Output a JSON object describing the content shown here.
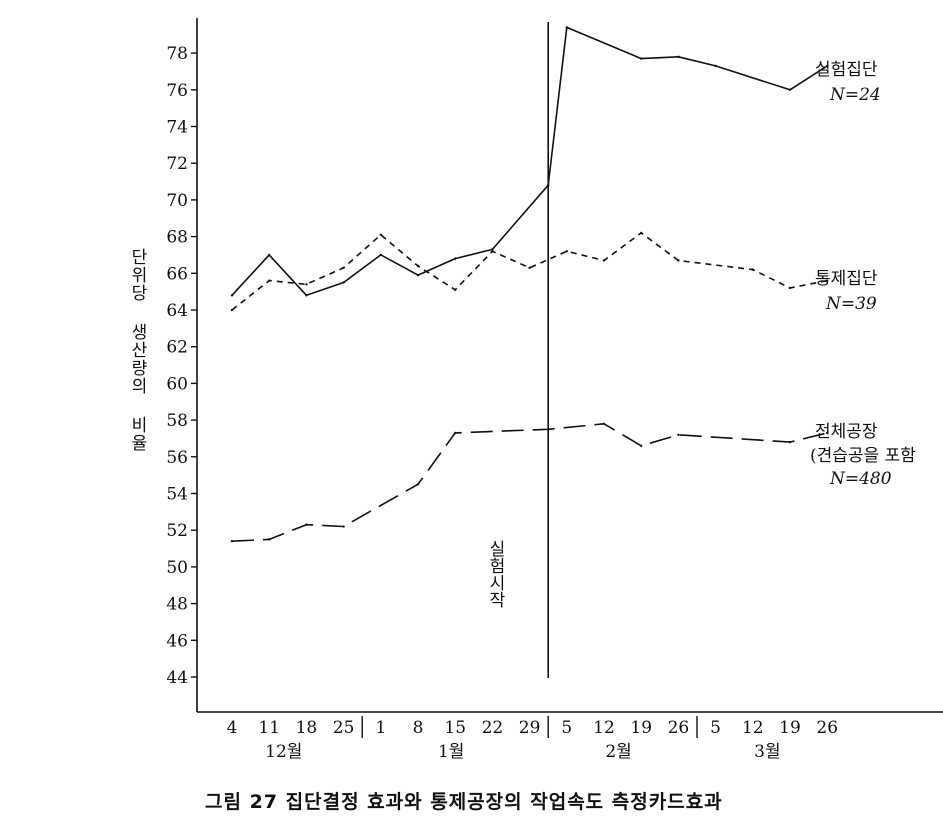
{
  "caption": "그림 27  집단결정 효과와 통제공장의 작업속도 측정카드효과",
  "chart_data": {
    "type": "line",
    "ylabel": "단위당 생산량의 비율",
    "ylim": [
      44,
      80
    ],
    "yticks": [
      44,
      46,
      48,
      50,
      52,
      54,
      56,
      58,
      60,
      62,
      64,
      66,
      68,
      70,
      72,
      74,
      76,
      78
    ],
    "categories": [
      "4",
      "11",
      "18",
      "25",
      "1",
      "8",
      "15",
      "22",
      "29",
      "5",
      "12",
      "19",
      "26",
      "5",
      "12",
      "19",
      "26"
    ],
    "months": [
      {
        "label": "12월",
        "start": 0,
        "end": 3
      },
      {
        "label": "1월",
        "start": 4,
        "end": 8
      },
      {
        "label": "2월",
        "start": 9,
        "end": 12
      },
      {
        "label": "3월",
        "start": 13,
        "end": 16
      }
    ],
    "marker": {
      "label": "실험시작",
      "position": 8.5
    },
    "series": [
      {
        "name": "실험집단",
        "n_label": "N=24",
        "style": "solid",
        "x": [
          0,
          1,
          2,
          3,
          4,
          5,
          6,
          7,
          8.5,
          9,
          11,
          12,
          13,
          15,
          16
        ],
        "values": [
          64.8,
          67.0,
          64.8,
          65.5,
          67.0,
          65.9,
          66.8,
          67.3,
          70.8,
          79.4,
          77.7,
          77.8,
          77.3,
          76.0,
          77.3
        ]
      },
      {
        "name": "통제집단",
        "n_label": "N=39",
        "style": "dashed",
        "x": [
          0,
          1,
          2,
          3,
          4,
          5,
          6,
          7,
          8,
          9,
          10,
          11,
          12,
          14,
          15,
          16
        ],
        "values": [
          64.0,
          65.6,
          65.4,
          66.3,
          68.1,
          66.4,
          65.1,
          67.2,
          66.3,
          67.2,
          66.7,
          68.2,
          66.7,
          66.2,
          65.2,
          65.6
        ]
      },
      {
        "name": "전체공장",
        "sub_label": "(견습공을 포함",
        "n_label": "N=480",
        "style": "longdash",
        "x": [
          0,
          1,
          2,
          3,
          5,
          6,
          8.5,
          10,
          11,
          12,
          15,
          16
        ],
        "values": [
          51.4,
          51.5,
          52.3,
          52.2,
          54.5,
          57.3,
          57.5,
          57.8,
          56.6,
          57.2,
          56.8,
          57.3
        ]
      }
    ]
  }
}
